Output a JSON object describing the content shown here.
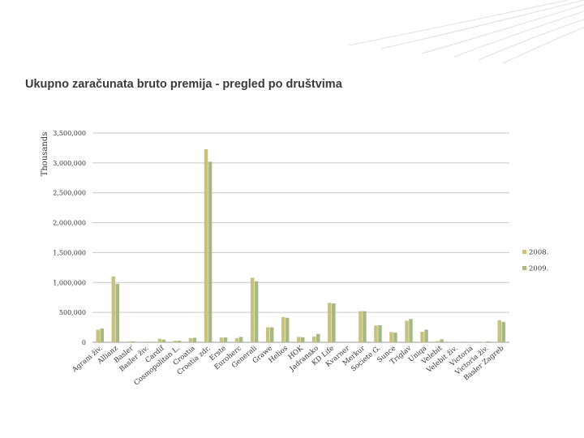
{
  "chart_data": {
    "type": "bar",
    "title": "Ukupno zaračunata bruto premija  - pregled po društvima",
    "ylabel": "Thousands",
    "xlabel": "",
    "ylim": [
      0,
      3500000
    ],
    "yticks": [
      0,
      500000,
      1000000,
      1500000,
      2000000,
      2500000,
      3000000,
      3500000
    ],
    "ytick_labels": [
      "0",
      "500,000",
      "1,000,000",
      "1,500,000",
      "2,000,000",
      "2,500,000",
      "3,000,000",
      "3,500,000"
    ],
    "grid": true,
    "legend_position": "right",
    "categories": [
      "Agram živ.",
      "Allianz",
      "Basler",
      "Basler živ.",
      "Cardif",
      "Cosmopolitan L.",
      "Croatia",
      "Croatia zdr.",
      "Erste",
      "Euroherc",
      "Generali",
      "Grawe",
      "Helios",
      "HOK",
      "Jadransko",
      "KD Life",
      "Kvarner",
      "Merkur",
      "Societe G.",
      "Sunce",
      "Triglav",
      "Uniqa",
      "Velebit",
      "Velebit živ.",
      "Victoria",
      "Victoria živ.",
      "Basler Zagreb"
    ],
    "series": [
      {
        "name": "2008.",
        "color": "#c8c27a",
        "values": [
          210000,
          1100000,
          15000,
          10000,
          60000,
          25000,
          70000,
          3230000,
          80000,
          70000,
          1080000,
          250000,
          420000,
          90000,
          95000,
          660000,
          0,
          520000,
          280000,
          170000,
          360000,
          175000,
          20000,
          5000,
          5000,
          5000,
          370000
        ]
      },
      {
        "name": "2009.",
        "color": "#a6b883",
        "values": [
          230000,
          980000,
          15000,
          10000,
          45000,
          25000,
          75000,
          3020000,
          80000,
          90000,
          1020000,
          250000,
          410000,
          85000,
          140000,
          650000,
          0,
          520000,
          285000,
          160000,
          390000,
          210000,
          50000,
          5000,
          5000,
          15000,
          340000
        ]
      }
    ]
  }
}
